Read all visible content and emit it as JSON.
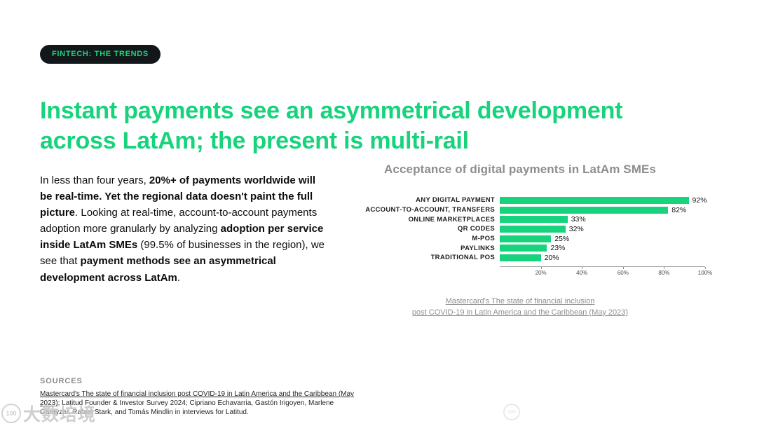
{
  "badge": {
    "label": "FINTECH: THE TRENDS"
  },
  "heading": {
    "title": "Instant payments see an asymmetrical development across LatAm; the present is multi-rail"
  },
  "intro": {
    "segments": [
      {
        "text": "In less than four years, ",
        "bold": false
      },
      {
        "text": "20%+ of payments worldwide will be real-time. Yet the regional data doesn't paint the full picture",
        "bold": true
      },
      {
        "text": ". Looking at real-time, account-to-account payments adoption more granularly by analyzing ",
        "bold": false
      },
      {
        "text": "adoption per service inside LatAm SMEs",
        "bold": true
      },
      {
        "text": " (99.5% of businesses in the region), we see that ",
        "bold": false
      },
      {
        "text": "payment methods see an asymmetrical development across LatAm",
        "bold": true
      },
      {
        "text": ".",
        "bold": false
      }
    ]
  },
  "chart_data": {
    "type": "bar",
    "orientation": "horizontal",
    "title": "Acceptance of digital payments in LatAm SMEs",
    "categories": [
      "ANY DIGITAL PAYMENT",
      "ACCOUNT-TO-ACCOUNT, TRANSFERS",
      "ONLINE MARKETPLACES",
      "QR CODES",
      "M-POS",
      "PAYLINKS",
      "TRADITIONAL POS"
    ],
    "values": [
      92,
      82,
      33,
      32,
      25,
      23,
      20
    ],
    "value_labels": [
      "92%",
      "82%",
      "33%",
      "32%",
      "25%",
      "23%",
      "20%"
    ],
    "x_ticks": [
      "20%",
      "40%",
      "60%",
      "80%",
      "100%"
    ],
    "xlim": [
      0,
      100
    ],
    "bar_color": "#16d37c",
    "legend": "none",
    "grid": "off",
    "source_line1": "Mastercard's The state of financial inclusion",
    "source_line2": "post COVID-19 in Latin America and the Caribbean (May 2023)"
  },
  "footer": {
    "heading": "SOURCES",
    "link_text": "Mastercard's The state of financial inclusion post COVID-19 in Latin America and the Caribbean (May 2023)",
    "rest_text": "; Latitud Founder & Investor Survey 2024; Cipriano Echavarria, Gastón Irigoyen, Marlene Garayzar, Rafael Stark, and Tomás Mindlin in interviews for Latitud."
  },
  "watermark": {
    "logo": "100",
    "text": "大数培境"
  },
  "colors": {
    "accent_green": "#16d37c",
    "badge_bg": "#12171a",
    "chart_title_gray": "#8d8d8d",
    "source_gray": "#8f8f8f"
  }
}
